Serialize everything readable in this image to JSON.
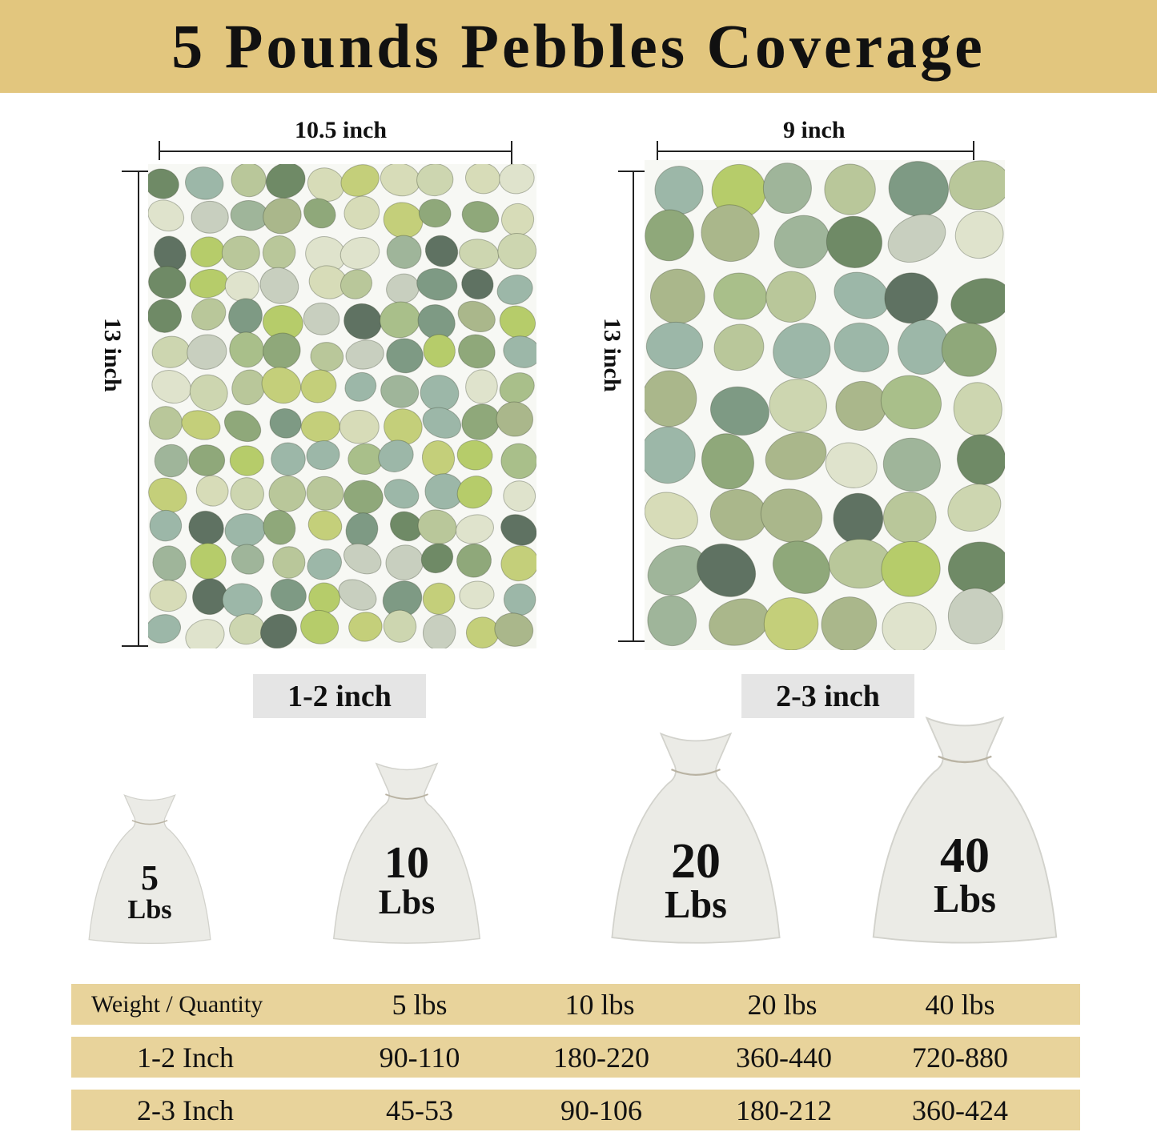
{
  "title": "5 Pounds Pebbles Coverage",
  "colors": {
    "banner": "#e2c67e",
    "table_row": "#e8d39b",
    "pebble_palette": [
      "#b9c79a",
      "#a9bf8a",
      "#cdd6b0",
      "#8fa87a",
      "#c4cf7a",
      "#9fb59a",
      "#dfe3cc",
      "#6f8a66",
      "#b6cc6a",
      "#9cb7a8",
      "#c8cfbf",
      "#7e9a84",
      "#aab78b",
      "#d7dcb8",
      "#5f7262"
    ]
  },
  "panels": [
    {
      "width_label": "10.5 inch",
      "height_label": "13 inch",
      "size_label": "1-2 inch"
    },
    {
      "width_label": "9 inch",
      "height_label": "13 inch",
      "size_label": "2-3 inch"
    }
  ],
  "bags": [
    {
      "weight": "5",
      "unit": "Lbs"
    },
    {
      "weight": "10",
      "unit": "Lbs"
    },
    {
      "weight": "20",
      "unit": "Lbs"
    },
    {
      "weight": "40",
      "unit": "Lbs"
    }
  ],
  "table": {
    "header": [
      "Weight / Quantity",
      "5 lbs",
      "10 lbs",
      "20 lbs",
      "40 lbs"
    ],
    "rows": [
      [
        "1-2 Inch",
        "90-110",
        "180-220",
        "360-440",
        "720-880"
      ],
      [
        "2-3 Inch",
        "45-53",
        "90-106",
        "180-212",
        "360-424"
      ]
    ]
  }
}
